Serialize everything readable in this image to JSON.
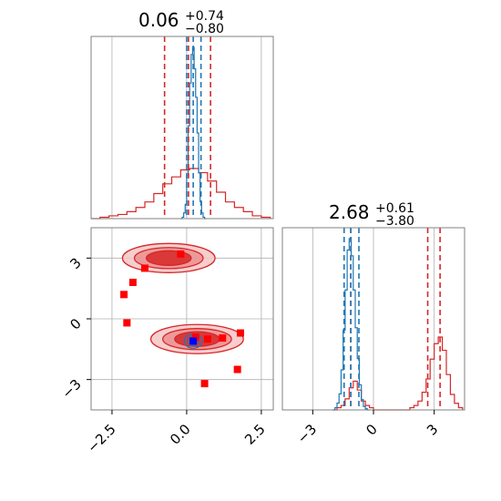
{
  "chart_data": {
    "type": "corner",
    "colors": {
      "red": "#d62728",
      "blue": "#1f77b4",
      "grid": "#b0b0b0",
      "frame": "#808080",
      "marker_red": "#ff0000",
      "marker_blue": "#0000ff"
    },
    "grid": true,
    "panels": {
      "hist_x": {
        "title": {
          "value": "0.06",
          "plus": "+0.74",
          "minus": "−0.80"
        },
        "xlim": [
          -3.2,
          2.9
        ],
        "quantiles_red": [
          -0.74,
          0.06,
          0.8
        ],
        "quantiles_blue": [
          0.0,
          0.22,
          0.48
        ],
        "red_hist": {
          "edges": [
            -3.2,
            -2.9,
            -2.6,
            -2.3,
            -2.0,
            -1.7,
            -1.4,
            -1.1,
            -0.8,
            -0.5,
            -0.2,
            0.1,
            0.4,
            0.7,
            1.0,
            1.3,
            1.6,
            1.9,
            2.2,
            2.5,
            2.8
          ],
          "counts": [
            0,
            1,
            2,
            3,
            5,
            8,
            12,
            18,
            25,
            30,
            35,
            36,
            33,
            27,
            19,
            12,
            8,
            5,
            2,
            1
          ]
        },
        "blue_hist": {
          "edges": [
            -0.2,
            -0.15,
            -0.1,
            -0.05,
            0.0,
            0.05,
            0.1,
            0.15,
            0.2,
            0.25,
            0.3,
            0.35,
            0.4,
            0.45,
            0.5,
            0.55,
            0.6,
            0.65
          ],
          "counts": [
            0,
            1,
            4,
            10,
            30,
            65,
            95,
            115,
            120,
            105,
            85,
            60,
            32,
            12,
            4,
            1,
            0
          ]
        }
      },
      "hist_y": {
        "title": {
          "value": "2.68",
          "plus": "+0.61",
          "minus": "−3.80"
        },
        "xlim": [
          -4.5,
          4.5
        ],
        "xticks": [
          "−3",
          "0",
          "3"
        ],
        "xtick_values": [
          -3,
          0,
          3
        ],
        "quantiles_red": [
          -1.12,
          2.68,
          3.29
        ],
        "quantiles_blue": [
          -1.45,
          -1.12,
          -0.72
        ],
        "red_hist": {
          "edges": [
            -2.0,
            -1.8,
            -1.6,
            -1.4,
            -1.2,
            -1.0,
            -0.8,
            -0.6,
            -0.4,
            -0.2,
            0.0,
            0.2,
            0.4,
            0.6,
            0.8,
            1.0,
            1.2,
            1.4,
            1.6,
            1.8,
            2.0,
            2.2,
            2.4,
            2.6,
            2.8,
            3.0,
            3.2,
            3.4,
            3.6,
            3.8,
            4.0,
            4.2,
            4.4
          ],
          "counts": [
            0,
            1,
            2,
            5,
            10,
            13,
            9,
            4,
            2,
            1,
            0,
            0,
            0,
            0,
            0,
            0,
            0,
            0,
            0,
            1,
            2,
            4,
            8,
            14,
            23,
            30,
            33,
            27,
            16,
            7,
            3,
            1
          ]
        },
        "blue_hist": {
          "edges": [
            -2.0,
            -1.9,
            -1.8,
            -1.7,
            -1.6,
            -1.5,
            -1.4,
            -1.3,
            -1.2,
            -1.1,
            -1.0,
            -0.9,
            -0.8,
            -0.7,
            -0.6,
            -0.5,
            -0.4,
            -0.3,
            -0.2
          ],
          "counts": [
            0,
            2,
            6,
            14,
            35,
            70,
            105,
            140,
            150,
            135,
            105,
            72,
            45,
            22,
            9,
            3,
            1,
            0
          ]
        }
      },
      "scatter": {
        "xlim": [
          -3.2,
          2.9
        ],
        "ylim": [
          -4.5,
          4.5
        ],
        "xticks": [
          "−2.5",
          "0.0",
          "2.5"
        ],
        "xtick_values": [
          -2.5,
          0.0,
          2.5
        ],
        "yticks": [
          "3",
          "0",
          "−3"
        ],
        "ytick_values": [
          3,
          0,
          -3
        ],
        "red_contour_modes": [
          {
            "cx": -0.6,
            "cy": 3.0,
            "levels": [
              [
                1.55,
                0.72
              ],
              [
                1.15,
                0.52
              ],
              [
                0.75,
                0.36
              ]
            ]
          },
          {
            "cx": 0.35,
            "cy": -1.0,
            "levels": [
              [
                1.55,
                0.72
              ],
              [
                1.15,
                0.52
              ],
              [
                0.75,
                0.36
              ]
            ]
          }
        ],
        "blue_contour_mode": {
          "cx": 0.22,
          "cy": -1.1,
          "levels": [
            [
              0.3,
              0.35
            ],
            [
              0.18,
              0.21
            ]
          ]
        },
        "red_markers": [
          [
            -0.2,
            3.2
          ],
          [
            -1.4,
            2.5
          ],
          [
            -2.1,
            1.2
          ],
          [
            -2.0,
            -0.2
          ],
          [
            0.3,
            -0.9
          ],
          [
            0.7,
            -1.0
          ],
          [
            1.2,
            -0.95
          ],
          [
            1.8,
            -0.7
          ],
          [
            0.6,
            -3.2
          ],
          [
            1.7,
            -2.5
          ],
          [
            -1.8,
            1.8
          ]
        ],
        "blue_markers": [
          [
            0.22,
            -1.1
          ]
        ]
      }
    }
  }
}
